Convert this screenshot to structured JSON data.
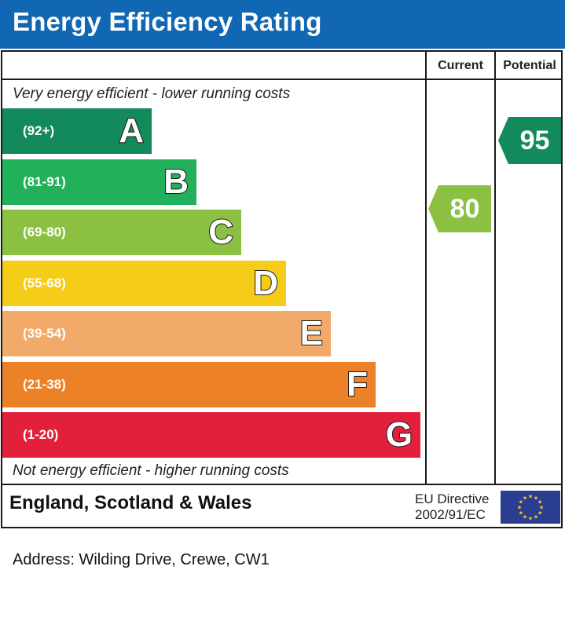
{
  "header": {
    "title": "Energy Efficiency Rating",
    "color": "#1167b3"
  },
  "columns": {
    "current": "Current",
    "potential": "Potential"
  },
  "captions": {
    "top": "Very energy efficient - lower running costs",
    "bottom": "Not energy efficient - higher running costs"
  },
  "chart_data": {
    "type": "bar",
    "title": "Energy Efficiency Rating",
    "categories": [
      "A",
      "B",
      "C",
      "D",
      "E",
      "F",
      "G"
    ],
    "ranges": [
      "(92+)",
      "(81-91)",
      "(69-80)",
      "(55-68)",
      "(39-54)",
      "(21-38)",
      "(1-20)"
    ],
    "colors": [
      "#138a5b",
      "#22b05a",
      "#8cc043",
      "#f5cc18",
      "#f2aa6a",
      "#ec8128",
      "#e3203c"
    ],
    "current": {
      "label": "Current",
      "value": 80,
      "band": "C",
      "color": "#8cc043"
    },
    "potential": {
      "label": "Potential",
      "value": 95,
      "band": "A",
      "color": "#138a5b"
    }
  },
  "footer": {
    "country": "England, Scotland & Wales",
    "directive_line1": "EU Directive",
    "directive_line2": "2002/91/EC",
    "flag": "eu-flag-icon"
  },
  "address": "Address: Wilding Drive, Crewe, CW1"
}
